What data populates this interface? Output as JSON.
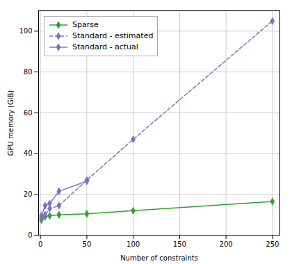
{
  "chart_data": {
    "type": "line",
    "xlabel": "Number of constraints",
    "ylabel": "GPU memory (GiB)",
    "series": [
      {
        "name": "Sparse",
        "color": "#2ca02c",
        "marker": "diamond",
        "line_style": "solid",
        "x": [
          1,
          5,
          10,
          20,
          50,
          100,
          250
        ],
        "values": [
          7.5,
          9.0,
          9.5,
          10.0,
          10.5,
          12.0,
          16.5
        ]
      },
      {
        "name": "Standard - estimated",
        "color": "#7b72be",
        "marker": "diamond",
        "line_style": "dashed",
        "x": [
          1,
          5,
          10,
          20,
          50,
          100,
          250
        ],
        "values": [
          8.5,
          10.0,
          13.0,
          14.5,
          27.0,
          47.0,
          105.0
        ]
      },
      {
        "name": "Standard - actual",
        "color": "#7b72be",
        "marker": "diamond",
        "line_style": "solid",
        "x": [
          1,
          5,
          10,
          20,
          50
        ],
        "values": [
          9.5,
          14.5,
          15.5,
          21.5,
          26.5
        ]
      }
    ],
    "xlim": [
      -2,
      258
    ],
    "ylim": [
      0,
      110
    ],
    "xticks": [
      0,
      50,
      100,
      150,
      200,
      250
    ],
    "yticks": [
      0,
      20,
      40,
      60,
      80,
      100
    ],
    "grid": true,
    "legend": "upper left"
  }
}
